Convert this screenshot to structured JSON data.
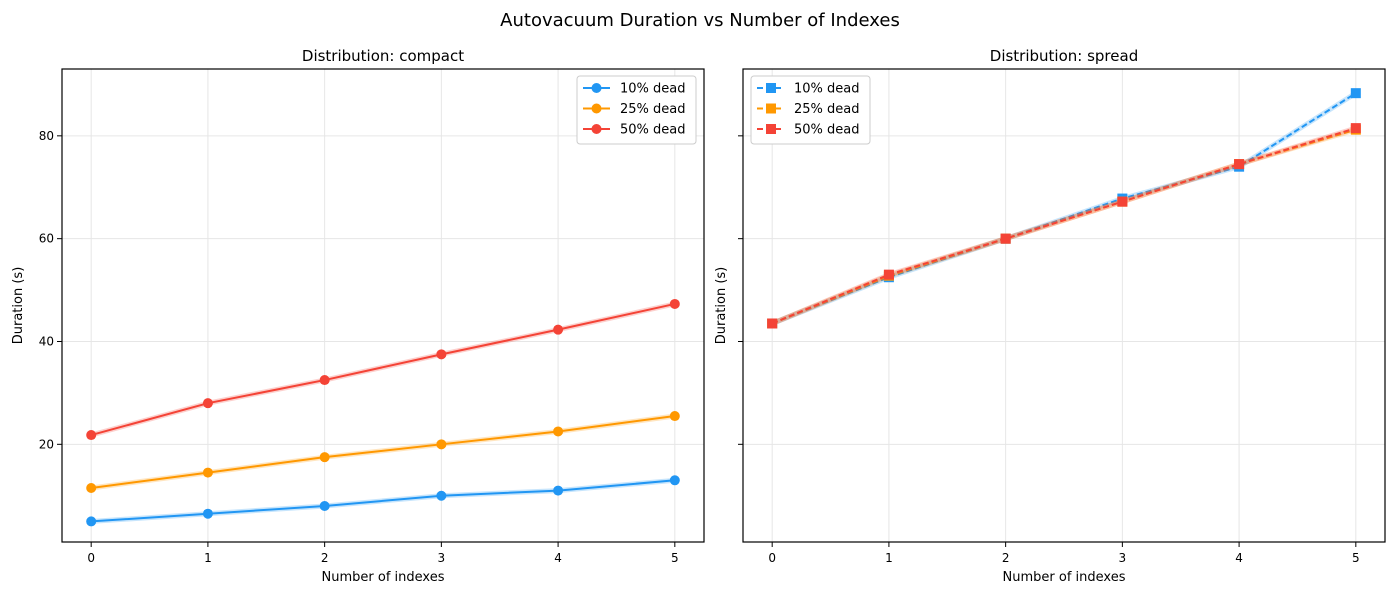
{
  "title": "Autovacuum Duration vs Number of Indexes",
  "chart_data": [
    {
      "type": "line",
      "title": "Distribution: compact",
      "xlabel": "Number of indexes",
      "ylabel": "Duration (s)",
      "x": [
        0,
        1,
        2,
        3,
        4,
        5
      ],
      "xlim": [
        -0.25,
        5.25
      ],
      "ylim": [
        1,
        93
      ],
      "yticks": [
        20,
        40,
        60,
        80
      ],
      "grid": true,
      "legend_position": "top-right",
      "marker": "circle",
      "line_style": "solid",
      "series": [
        {
          "name": "10% dead",
          "color": "#2196f3",
          "values": [
            5.0,
            6.5,
            8.0,
            10.0,
            11.0,
            13.0
          ]
        },
        {
          "name": "25% dead",
          "color": "#ff9800",
          "values": [
            11.5,
            14.5,
            17.5,
            20.0,
            22.5,
            25.5
          ]
        },
        {
          "name": "50% dead",
          "color": "#f44336",
          "values": [
            21.8,
            28.0,
            32.5,
            37.5,
            42.3,
            47.3
          ]
        }
      ]
    },
    {
      "type": "line",
      "title": "Distribution: spread",
      "xlabel": "Number of indexes",
      "ylabel": "Duration (s)",
      "x": [
        0,
        1,
        2,
        3,
        4,
        5
      ],
      "xlim": [
        -0.25,
        5.25
      ],
      "ylim": [
        1,
        93
      ],
      "yticks": [
        20,
        40,
        60,
        80
      ],
      "show_ytick_labels": false,
      "grid": true,
      "legend_position": "top-left",
      "marker": "square",
      "line_style": "dashed",
      "series": [
        {
          "name": "10% dead",
          "color": "#2196f3",
          "values": [
            43.5,
            52.5,
            60.0,
            67.8,
            74.0,
            88.3
          ]
        },
        {
          "name": "25% dead",
          "color": "#ff9800",
          "values": [
            43.5,
            52.8,
            60.0,
            67.2,
            74.5,
            81.2
          ]
        },
        {
          "name": "50% dead",
          "color": "#f44336",
          "values": [
            43.5,
            53.0,
            60.0,
            67.2,
            74.5,
            81.5
          ]
        }
      ]
    }
  ]
}
